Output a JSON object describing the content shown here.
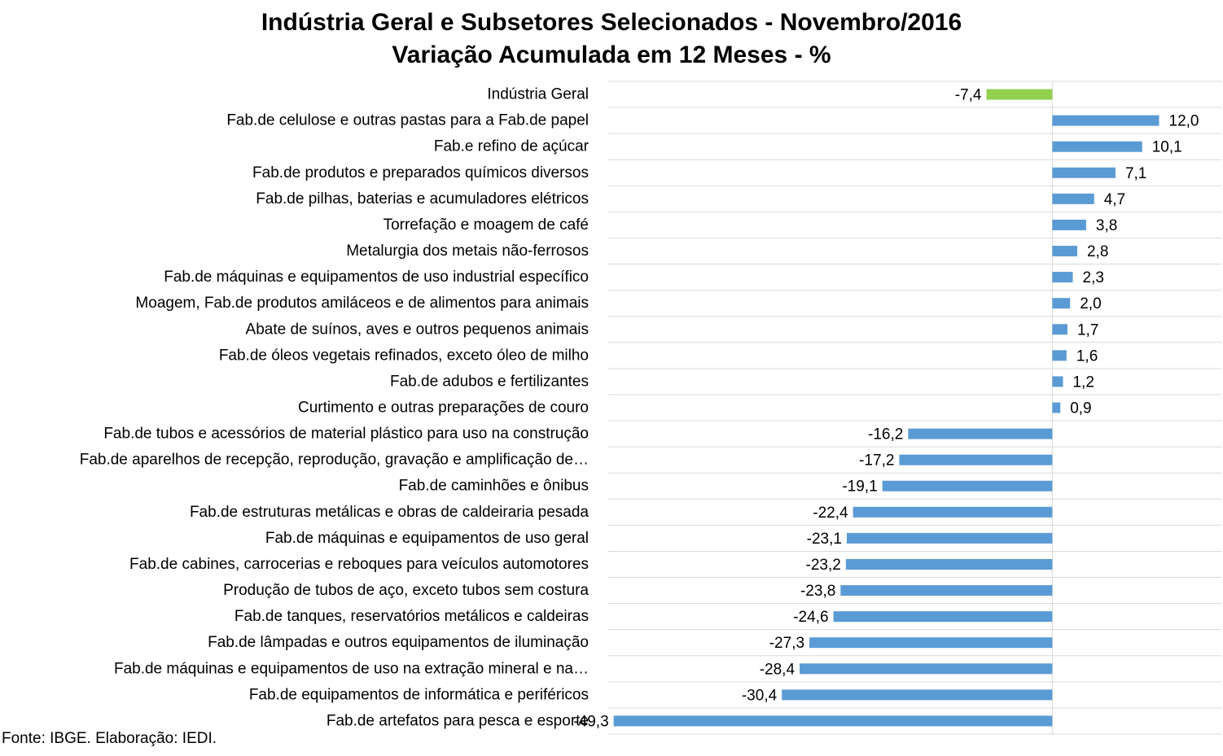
{
  "title_line1": "Indústria Geral e Subsetores Selecionados - Novembro/2016",
  "title_line2": "Variação Acumulada em 12 Meses - %",
  "source": "Fonte: IBGE. Elaboração: IEDI.",
  "colors": {
    "highlight": "#92d050",
    "bars": "#5b9bd5",
    "grid": "#d9d9d9"
  },
  "chart_data": {
    "type": "bar",
    "orientation": "horizontal",
    "title": "Indústria Geral e Subsetores Selecionados - Novembro/2016 — Variação Acumulada em 12 Meses - %",
    "categories": [
      "Indústria Geral",
      "Fab.de celulose e outras pastas para a Fab.de papel",
      "Fab.e refino de açúcar",
      "Fab.de produtos e preparados químicos diversos",
      "Fab.de pilhas, baterias e acumuladores elétricos",
      "Torrefação e moagem de café",
      "Metalurgia dos metais não-ferrosos",
      "Fab.de máquinas e equipamentos de uso industrial específico",
      "Moagem, Fab.de produtos amiláceos e de alimentos para animais",
      "Abate de suínos, aves e outros pequenos animais",
      "Fab.de óleos vegetais refinados, exceto óleo de milho",
      "Fab.de adubos e fertilizantes",
      "Curtimento e outras preparações de couro",
      "Fab.de tubos e acessórios de material plástico para uso na construção",
      "Fab.de aparelhos de recepção, reprodução, gravação e amplificação de…",
      "Fab.de caminhões e ônibus",
      "Fab.de estruturas metálicas e obras de caldeiraria pesada",
      "Fab.de máquinas e equipamentos de uso geral",
      "Fab.de cabines, carrocerias e reboques para veículos automotores",
      "Produção de tubos de aço, exceto tubos sem costura",
      "Fab.de tanques, reservatórios metálicos e caldeiras",
      "Fab.de lâmpadas e outros equipamentos de iluminação",
      "Fab.de máquinas e equipamentos de uso na extração mineral e na…",
      "Fab.de equipamentos de informática e periféricos",
      "Fab.de artefatos para pesca e esporte"
    ],
    "values": [
      -7.4,
      12.0,
      10.1,
      7.1,
      4.7,
      3.8,
      2.8,
      2.3,
      2.0,
      1.7,
      1.6,
      1.2,
      0.9,
      -16.2,
      -17.2,
      -19.1,
      -22.4,
      -23.1,
      -23.2,
      -23.8,
      -24.6,
      -27.3,
      -28.4,
      -30.4,
      -49.3
    ],
    "value_labels": [
      "-7,4",
      "12,0",
      "10,1",
      "7,1",
      "4,7",
      "3,8",
      "2,8",
      "2,3",
      "2,0",
      "1,7",
      "1,6",
      "1,2",
      "0,9",
      "-16,2",
      "-17,2",
      "-19,1",
      "-22,4",
      "-23,1",
      "-23,2",
      "-23,8",
      "-24,6",
      "-27,3",
      "-28,4",
      "-30,4",
      "-49,3"
    ],
    "highlight_index": 0,
    "xlim": [
      -50,
      19
    ],
    "grid": true,
    "legend": "none"
  }
}
